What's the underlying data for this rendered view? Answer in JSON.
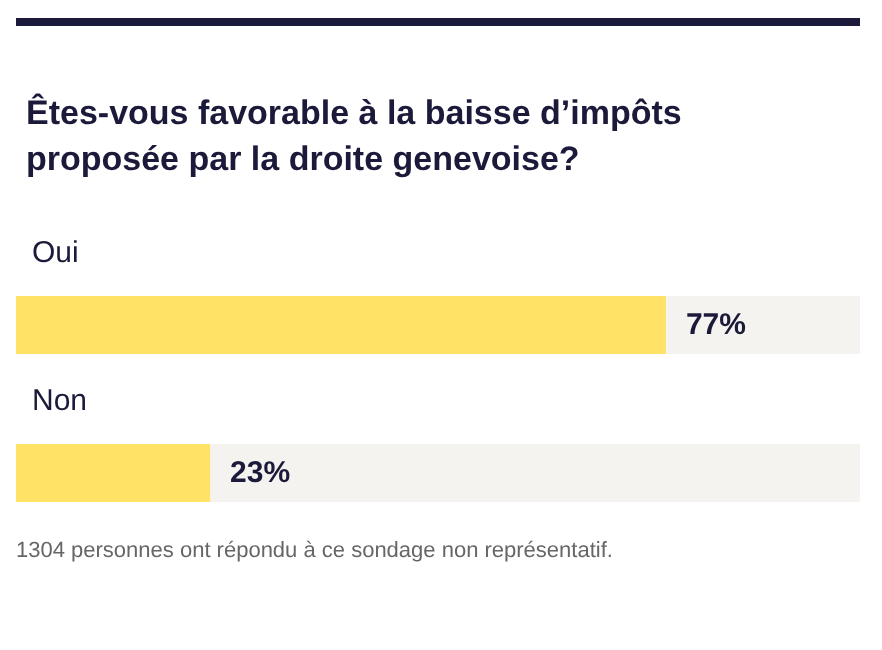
{
  "chart_data": {
    "type": "bar",
    "orientation": "horizontal",
    "title": "Êtes-vous favorable à la baisse d’impôts proposée par la droite genevoise?",
    "categories": [
      "Oui",
      "Non"
    ],
    "values": [
      77,
      23
    ],
    "value_labels": [
      "77%",
      "23%"
    ],
    "color": "#ffe266",
    "xlim": [
      0,
      100
    ],
    "tick_labels": "y",
    "annotations": [
      "1304 personnes ont répondu à ce sondage non représentatif."
    ]
  }
}
